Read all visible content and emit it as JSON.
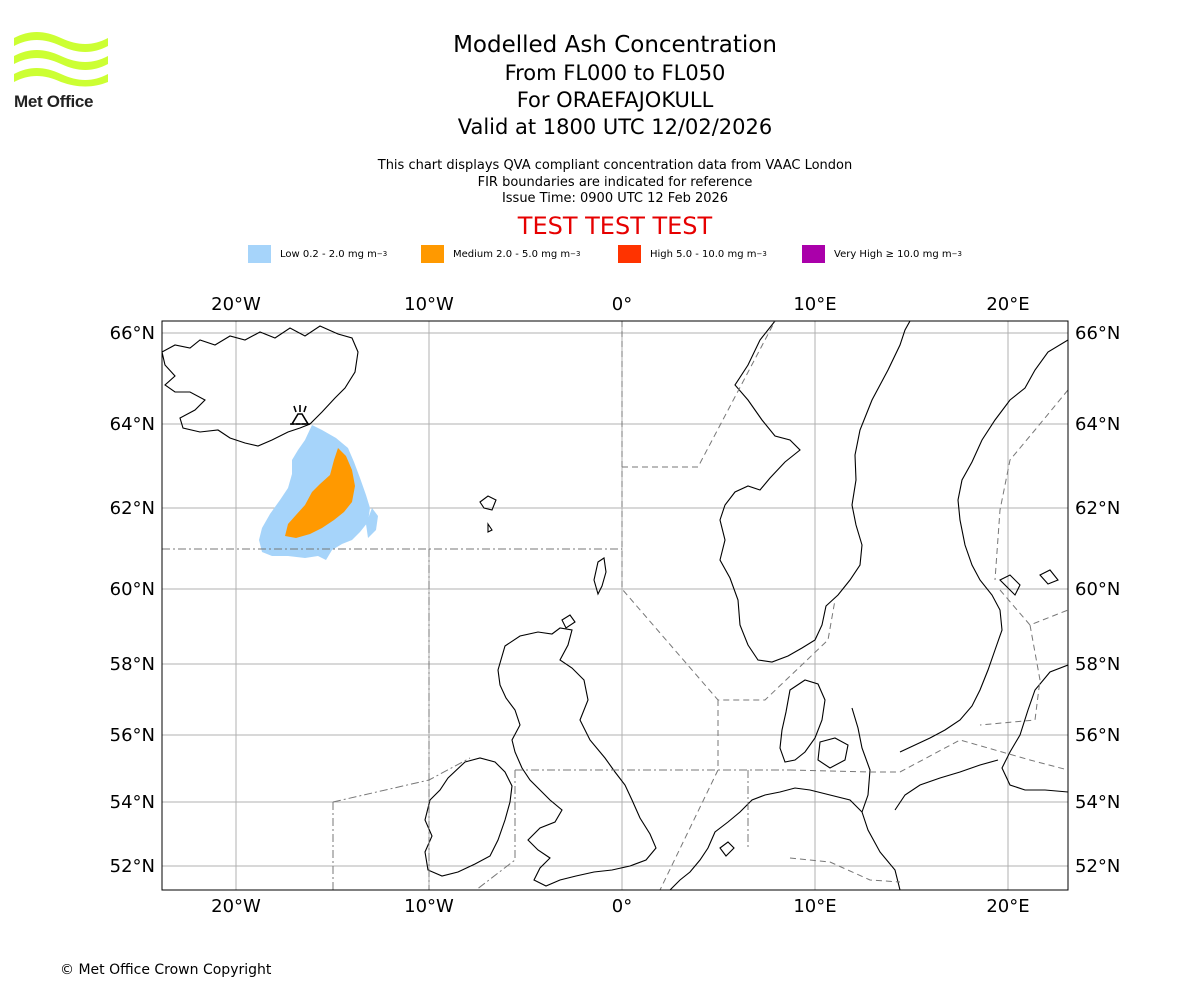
{
  "logo": {
    "text": "Met Office",
    "color": "#ccff33"
  },
  "title": {
    "main": "Modelled Ash Concentration",
    "levels": "From FL000 to FL050",
    "volcano": "For ORAEFAJOKULL",
    "valid": "Valid at 1800 UTC 12/02/2026"
  },
  "notes": {
    "line1": "This chart displays QVA compliant concentration data from VAAC London",
    "line2": "FIR boundaries are indicated for reference",
    "line3": "Issue Time: 0900 UTC 12 Feb 2026"
  },
  "test_banner": "TEST TEST TEST",
  "legend": [
    {
      "label": "Low 0.2 - 2.0 mg m",
      "color": "#a6d4fa"
    },
    {
      "label": "Medium 2.0 - 5.0 mg m",
      "color": "#ff9900"
    },
    {
      "label": "High 5.0 - 10.0 mg m",
      "color": "#ff3300"
    },
    {
      "label": "Very High ≥ 10.0 mg m",
      "color": "#aa00aa"
    }
  ],
  "legend_unit_exp": "−3",
  "map": {
    "lon_ticks": [
      "20°W",
      "10°W",
      "0°",
      "10°E",
      "20°E"
    ],
    "lat_ticks": [
      "66°N",
      "64°N",
      "62°N",
      "60°N",
      "58°N",
      "56°N",
      "54°N",
      "52°N"
    ],
    "volcano_icon": "volcano-icon"
  },
  "copyright": "© Met Office Crown Copyright"
}
